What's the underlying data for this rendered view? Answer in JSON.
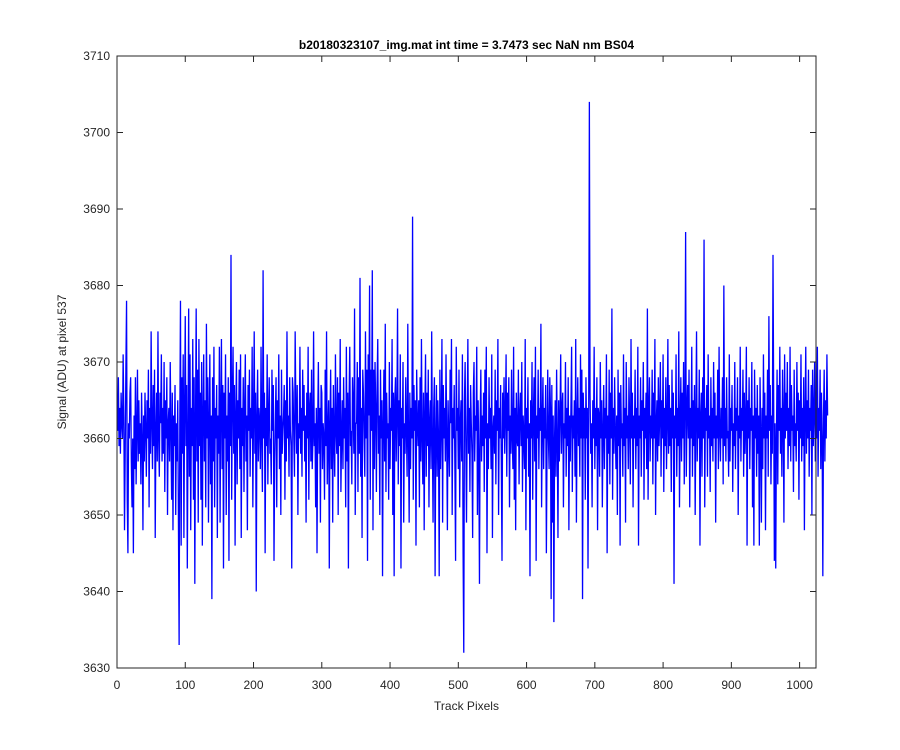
{
  "chart_data": {
    "type": "line",
    "title": "b20180323107_img.mat int time = 3.7473 sec  NaN nm BS04",
    "xlabel": "Track Pixels",
    "ylabel": "Signal (ADU) at pixel 537",
    "xlim": [
      0,
      1024
    ],
    "ylim": [
      3630,
      3710
    ],
    "xticks": [
      0,
      100,
      200,
      300,
      400,
      500,
      600,
      700,
      800,
      900,
      1000
    ],
    "yticks": [
      3630,
      3640,
      3650,
      3660,
      3670,
      3680,
      3690,
      3700,
      3710
    ],
    "xtick_labels": [
      "0",
      "100",
      "200",
      "300",
      "400",
      "500",
      "600",
      "700",
      "800",
      "900",
      "1000"
    ],
    "ytick_labels": [
      "3630",
      "3640",
      "3650",
      "3660",
      "3670",
      "3680",
      "3690",
      "3700",
      "3710"
    ],
    "grid": false,
    "line_color": "#0000ff",
    "series": [
      {
        "name": "",
        "x_start": 1,
        "x_step": 1,
        "values": [
          3661,
          3668,
          3659,
          3664,
          3658,
          3666,
          3662,
          3660,
          3671,
          3663,
          3648,
          3658,
          3669,
          3678,
          3652,
          3645,
          3662,
          3660,
          3666,
          3668,
          3657,
          3651,
          3660,
          3645,
          3663,
          3656,
          3668,
          3654,
          3661,
          3669,
          3657,
          3665,
          3658,
          3662,
          3654,
          3666,
          3660,
          3648,
          3663,
          3657,
          3666,
          3661,
          3655,
          3665,
          3660,
          3669,
          3651,
          3664,
          3658,
          3674,
          3662,
          3656,
          3667,
          3659,
          3669,
          3647,
          3661,
          3666,
          3657,
          3674,
          3660,
          3655,
          3666,
          3662,
          3671,
          3657,
          3664,
          3658,
          3670,
          3653,
          3665,
          3660,
          3668,
          3650,
          3662,
          3664,
          3657,
          3670,
          3661,
          3652,
          3666,
          3648,
          3663,
          3659,
          3667,
          3650,
          3662,
          3657,
          3665,
          3649,
          3633,
          3662,
          3678,
          3646,
          3668,
          3658,
          3671,
          3647,
          3664,
          3676,
          3659,
          3667,
          3643,
          3660,
          3677,
          3655,
          3671,
          3648,
          3664,
          3659,
          3673,
          3652,
          3668,
          3641,
          3662,
          3677,
          3657,
          3669,
          3649,
          3673,
          3659,
          3666,
          3652,
          3670,
          3646,
          3663,
          3671,
          3657,
          3665,
          3651,
          3675,
          3660,
          3668,
          3649,
          3662,
          3671,
          3654,
          3663,
          3639,
          3668,
          3657,
          3672,
          3651,
          3664,
          3660,
          3667,
          3647,
          3663,
          3658,
          3672,
          3649,
          3664,
          3673,
          3656,
          3667,
          3643,
          3666,
          3660,
          3671,
          3650,
          3663,
          3657,
          3668,
          3644,
          3666,
          3659,
          3684,
          3652,
          3665,
          3672,
          3658,
          3667,
          3646,
          3663,
          3670,
          3654,
          3665,
          3660,
          3669,
          3656,
          3671,
          3647,
          3664,
          3659,
          3668,
          3653,
          3664,
          3671,
          3657,
          3663,
          3648,
          3667,
          3661,
          3669,
          3655,
          3664,
          3660,
          3672,
          3651,
          3663,
          3674,
          3658,
          3666,
          3640,
          3663,
          3669,
          3657,
          3664,
          3662,
          3656,
          3672,
          3660,
          3653,
          3682,
          3660,
          3666,
          3645,
          3664,
          3659,
          3671,
          3654,
          3663,
          3668,
          3658,
          3660,
          3654,
          3669,
          3661,
          3667,
          3644,
          3657,
          3663,
          3668,
          3651,
          3665,
          3660,
          3671,
          3656,
          3663,
          3650,
          3669,
          3658,
          3661,
          3663,
          3667,
          3652,
          3665,
          3657,
          3674,
          3660,
          3663,
          3655,
          3668,
          3661,
          3659,
          3643,
          3668,
          3666,
          3660,
          3655,
          3674,
          3664,
          3658,
          3667,
          3650,
          3662,
          3660,
          3672,
          3658,
          3664,
          3655,
          3669,
          3661,
          3667,
          3657,
          3663,
          3649,
          3666,
          3660,
          3672,
          3652,
          3664,
          3666,
          3657,
          3669,
          3656,
          3660,
          3674,
          3659,
          3662,
          3651,
          3664,
          3645,
          3662,
          3670,
          3658,
          3664,
          3649,
          3667,
          3666,
          3656,
          3662,
          3660,
          3652,
          3669,
          3659,
          3674,
          3654,
          3661,
          3665,
          3643,
          3662,
          3669,
          3656,
          3664,
          3649,
          3667,
          3660,
          3655,
          3671,
          3661,
          3658,
          3668,
          3650,
          3666,
          3659,
          3673,
          3653,
          3660,
          3665,
          3656,
          3668,
          3660,
          3664,
          3651,
          3672,
          3657,
          3666,
          3643,
          3665,
          3672,
          3659,
          3661,
          3654,
          3668,
          3664,
          3658,
          3677,
          3650,
          3662,
          3662,
          3670,
          3653,
          3668,
          3658,
          3681,
          3655,
          3664,
          3647,
          3669,
          3666,
          3660,
          3655,
          3674,
          3660,
          3669,
          3644,
          3671,
          3663,
          3680,
          3652,
          3669,
          3661,
          3682,
          3648,
          3669,
          3656,
          3670,
          3664,
          3653,
          3667,
          3673,
          3658,
          3663,
          3650,
          3669,
          3660,
          3665,
          3642,
          3662,
          3669,
          3657,
          3675,
          3653,
          3666,
          3660,
          3662,
          3652,
          3670,
          3656,
          3664,
          3661,
          3673,
          3650,
          3666,
          3642,
          3665,
          3668,
          3657,
          3663,
          3677,
          3654,
          3665,
          3659,
          3671,
          3643,
          3664,
          3660,
          3670,
          3649,
          3662,
          3658,
          3668,
          3661,
          3655,
          3675,
          3660,
          3649,
          3666,
          3656,
          3664,
          3660,
          3689,
          3652,
          3667,
          3661,
          3665,
          3646,
          3669,
          3662,
          3659,
          3665,
          3651,
          3668,
          3657,
          3673,
          3660,
          3654,
          3666,
          3648,
          3663,
          3671,
          3655,
          3666,
          3659,
          3669,
          3651,
          3662,
          3665,
          3656,
          3674,
          3660,
          3649,
          3664,
          3668,
          3642,
          3660,
          3667,
          3655,
          3665,
          3660,
          3642,
          3669,
          3656,
          3662,
          3673,
          3649,
          3667,
          3660,
          3664,
          3657,
          3671,
          3660,
          3648,
          3665,
          3660,
          3655,
          3669,
          3662,
          3673,
          3650,
          3664,
          3660,
          3667,
          3656,
          3644,
          3672,
          3661,
          3664,
          3656,
          3669,
          3651,
          3662,
          3665,
          3657,
          3671,
          3645,
          3632,
          3665,
          3670,
          3659,
          3649,
          3662,
          3673,
          3658,
          3664,
          3653,
          3667,
          3662,
          3658,
          3647,
          3666,
          3670,
          3657,
          3663,
          3661,
          3672,
          3650,
          3665,
          3658,
          3641,
          3662,
          3669,
          3657,
          3663,
          3659,
          3666,
          3653,
          3669,
          3660,
          3672,
          3645,
          3662,
          3656,
          3668,
          3660,
          3664,
          3656,
          3671,
          3647,
          3661,
          3663,
          3658,
          3669,
          3654,
          3665,
          3661,
          3673,
          3650,
          3664,
          3660,
          3667,
          3657,
          3644,
          3666,
          3660,
          3668,
          3658,
          3663,
          3671,
          3655,
          3666,
          3661,
          3668,
          3651,
          3663,
          3658,
          3669,
          3660,
          3656,
          3672,
          3652,
          3664,
          3648,
          3666,
          3660,
          3659,
          3669,
          3654,
          3663,
          3666,
          3659,
          3670,
          3653,
          3663,
          3660,
          3656,
          3673,
          3648,
          3664,
          3660,
          3668,
          3655,
          3662,
          3642,
          3665,
          3660,
          3670,
          3652,
          3663,
          3668,
          3657,
          3672,
          3644,
          3663,
          3660,
          3669,
          3656,
          3664,
          3661,
          3675,
          3651,
          3662,
          3668,
          3656,
          3664,
          3660,
          3667,
          3645,
          3659,
          3669,
          3660,
          3656,
          3668,
          3664,
          3639,
          3667,
          3649,
          3663,
          3636,
          3660,
          3665,
          3655,
          3669,
          3660,
          3647,
          3665,
          3657,
          3663,
          3671,
          3658,
          3664,
          3666,
          3651,
          3662,
          3660,
          3670,
          3655,
          3664,
          3659,
          3668,
          3648,
          3663,
          3657,
          3664,
          3672,
          3653,
          3663,
          3660,
          3665,
          3655,
          3673,
          3649,
          3662,
          3668,
          3659,
          3664,
          3655,
          3671,
          3660,
          3669,
          3639,
          3666,
          3660,
          3664,
          3652,
          3668,
          3660,
          3664,
          3643,
          3663,
          3704,
          3666,
          3658,
          3662,
          3651,
          3665,
          3660,
          3672,
          3656,
          3664,
          3659,
          3668,
          3648,
          3664,
          3663,
          3655,
          3670,
          3660,
          3665,
          3651,
          3661,
          3667,
          3656,
          3664,
          3660,
          3671,
          3645,
          3663,
          3658,
          3669,
          3654,
          3666,
          3660,
          3677,
          3652,
          3664,
          3658,
          3668,
          3661,
          3656,
          3663,
          3650,
          3669,
          3659,
          3666,
          3646,
          3667,
          3660,
          3662,
          3655,
          3671,
          3659,
          3664,
          3649,
          3670,
          3660,
          3663,
          3656,
          3668,
          3662,
          3654,
          3673,
          3660,
          3666,
          3651,
          3663,
          3660,
          3669,
          3656,
          3664,
          3659,
          3672,
          3646,
          3663,
          3660,
          3668,
          3655,
          3665,
          3661,
          3670,
          3652,
          3664,
          3660,
          3666,
          3656,
          3677,
          3652,
          3664,
          3668,
          3657,
          3663,
          3660,
          3669,
          3654,
          3666,
          3660,
          3673,
          3650,
          3662,
          3665,
          3657,
          3668,
          3659,
          3663,
          3670,
          3655,
          3665,
          3660,
          3671,
          3653,
          3664,
          3659,
          3668,
          3656,
          3662,
          3673,
          3658,
          3667,
          3659,
          3664,
          3653,
          3669,
          3660,
          3666,
          3641,
          3663,
          3660,
          3671,
          3655,
          3664,
          3659,
          3674,
          3651,
          3662,
          3668,
          3657,
          3666,
          3660,
          3670,
          3654,
          3664,
          3687,
          3655,
          3663,
          3667,
          3660,
          3669,
          3651,
          3664,
          3660,
          3672,
          3655,
          3665,
          3659,
          3667,
          3650,
          3663,
          3674,
          3657,
          3664,
          3660,
          3669,
          3646,
          3663,
          3666,
          3655,
          3668,
          3660,
          3686,
          3651,
          3664,
          3661,
          3667,
          3655,
          3671,
          3660,
          3663,
          3653,
          3668,
          3659,
          3664,
          3657,
          3670,
          3660,
          3666,
          3649,
          3663,
          3660,
          3669,
          3656,
          3672,
          3661,
          3657,
          3664,
          3660,
          3668,
          3654,
          3680,
          3659,
          3664,
          3657,
          3668,
          3660,
          3661,
          3655,
          3671,
          3657,
          3664,
          3661,
          3667,
          3653,
          3662,
          3659,
          3670,
          3656,
          3664,
          3661,
          3668,
          3650,
          3663,
          3660,
          3672,
          3657,
          3664,
          3661,
          3669,
          3655,
          3666,
          3658,
          3662,
          3672,
          3646,
          3665,
          3660,
          3668,
          3656,
          3664,
          3661,
          3670,
          3651,
          3663,
          3646,
          3669,
          3660,
          3664,
          3655,
          3667,
          3658,
          3663,
          3646,
          3668,
          3661,
          3649,
          3664,
          3656,
          3671,
          3660,
          3666,
          3648,
          3663,
          3660,
          3669,
          3655,
          3676,
          3661,
          3667,
          3654,
          3663,
          3658,
          3684,
          3665,
          3644,
          3662,
          3643,
          3660,
          3669,
          3654,
          3667,
          3661,
          3672,
          3658,
          3664,
          3655,
          3669,
          3663,
          3649,
          3671,
          3660,
          3666,
          3661,
          3670,
          3656,
          3664,
          3659,
          3672,
          3657,
          3667,
          3661,
          3663,
          3653,
          3669,
          3659,
          3662,
          3657,
          3670,
          3661,
          3666,
          3652,
          3665,
          3660,
          3671,
          3657,
          3664,
          3659,
          3668,
          3648,
          3663,
          3672,
          3658,
          3665,
          3660,
          3669,
          3655,
          3664,
          3661,
          3667,
          3650,
          3669,
          3659,
          3663,
          3670,
          3657,
          3666,
          3660,
          3672,
          3655,
          3664,
          3661,
          3669,
          3656,
          3666,
          3660,
          3642,
          3663,
          3669,
          3657,
          3665,
          3660,
          3671,
          3663
        ]
      }
    ]
  }
}
